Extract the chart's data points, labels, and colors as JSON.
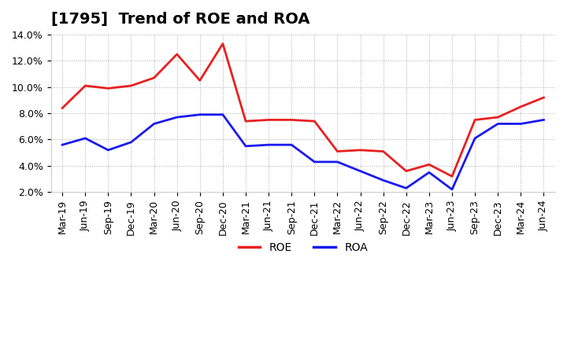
{
  "title": "[1795]  Trend of ROE and ROA",
  "x_labels": [
    "Mar-19",
    "Jun-19",
    "Sep-19",
    "Dec-19",
    "Mar-20",
    "Jun-20",
    "Sep-20",
    "Dec-20",
    "Mar-21",
    "Jun-21",
    "Sep-21",
    "Dec-21",
    "Mar-22",
    "Jun-22",
    "Sep-22",
    "Dec-22",
    "Mar-23",
    "Jun-23",
    "Sep-23",
    "Dec-23",
    "Mar-24",
    "Jun-24"
  ],
  "roe": [
    8.4,
    10.1,
    9.9,
    10.1,
    10.7,
    12.5,
    10.5,
    13.3,
    7.4,
    7.5,
    7.5,
    7.4,
    5.1,
    5.2,
    5.1,
    3.6,
    4.1,
    3.2,
    7.5,
    7.7,
    8.5,
    9.2
  ],
  "roa": [
    5.6,
    6.1,
    5.2,
    5.8,
    7.2,
    7.7,
    7.9,
    7.9,
    5.5,
    5.6,
    5.6,
    4.3,
    4.3,
    3.6,
    2.9,
    2.3,
    3.5,
    2.2,
    6.1,
    7.2,
    7.2,
    7.5
  ],
  "roe_color": "#e82020",
  "roa_color": "#1a1aee",
  "ylim": [
    2.0,
    14.0
  ],
  "yticks": [
    2.0,
    4.0,
    6.0,
    8.0,
    10.0,
    12.0,
    14.0
  ],
  "bg_color": "#ffffff",
  "plot_bg_color": "#ffffff",
  "grid_color": "#aaaaaa",
  "legend_labels": [
    "ROE",
    "ROA"
  ],
  "title_fontsize": 14,
  "tick_fontsize": 9,
  "line_width": 2.0
}
